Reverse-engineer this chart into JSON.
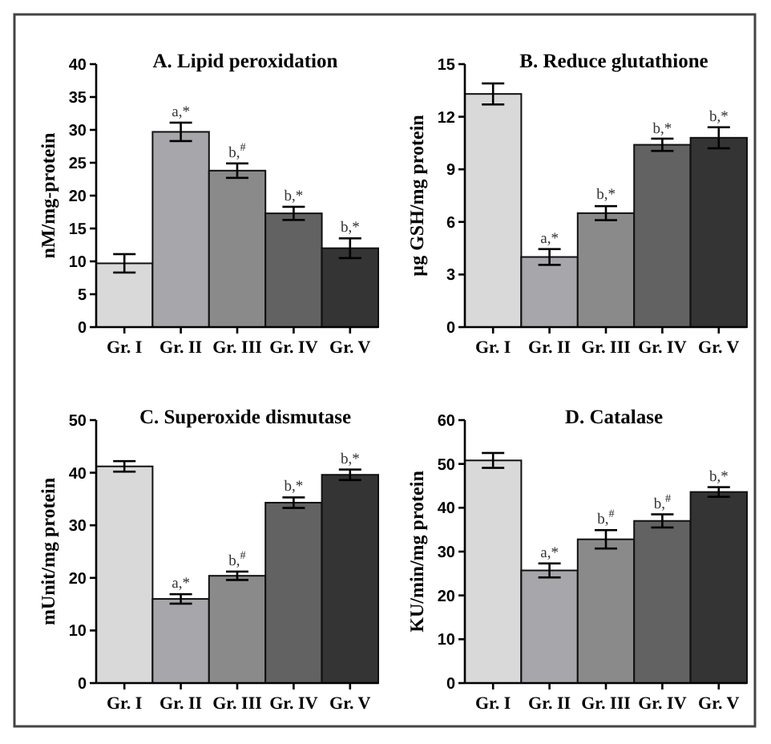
{
  "chart_data": [
    {
      "type": "bar",
      "title": "A. Lipid peroxidation",
      "ylabel": "nM/mg-protein",
      "categories": [
        "Gr. I",
        "Gr. II",
        "Gr. III",
        "Gr. IV",
        "Gr. V"
      ],
      "values": [
        9.7,
        29.7,
        23.8,
        17.3,
        12.0
      ],
      "errors": [
        1.4,
        1.4,
        1.1,
        1.0,
        1.5
      ],
      "colors": [
        "#d9d9d9",
        "#a7a7ab",
        "#8a8a8a",
        "#626262",
        "#343434"
      ],
      "ylim": [
        0,
        40
      ],
      "yticks": [
        0,
        5,
        10,
        15,
        20,
        25,
        30,
        35,
        40
      ],
      "grid": false,
      "annotations": [
        {
          "text": "a,*",
          "x": "Gr. II",
          "y": 31.1
        },
        {
          "text": "b,$^{#}$",
          "x": "Gr. III",
          "y": 24.9
        },
        {
          "text": "b,*",
          "x": "Gr. IV",
          "y": 18.3
        },
        {
          "text": "b,*",
          "x": "Gr. V",
          "y": 13.5
        }
      ]
    },
    {
      "type": "bar",
      "title": "B. Reduce glutathione",
      "ylabel": "µg GSH/mg protein",
      "categories": [
        "Gr. I",
        "Gr. II",
        "Gr. III",
        "Gr. IV",
        "Gr. V"
      ],
      "values": [
        13.3,
        4.0,
        6.5,
        10.4,
        10.8
      ],
      "errors": [
        0.6,
        0.45,
        0.4,
        0.35,
        0.6
      ],
      "colors": [
        "#d9d9d9",
        "#a7a7ab",
        "#8a8a8a",
        "#626262",
        "#343434"
      ],
      "ylim": [
        0,
        15
      ],
      "yticks": [
        0,
        3,
        6,
        9,
        12,
        15
      ],
      "grid": false,
      "annotations": [
        {
          "text": "a,*",
          "x": "Gr. II",
          "y": 4.45
        },
        {
          "text": "b,*",
          "x": "Gr. III",
          "y": 6.95
        },
        {
          "text": "b,*",
          "x": "Gr. IV",
          "y": 10.7
        },
        {
          "text": "b,*",
          "x": "Gr. V",
          "y": 11.4
        }
      ]
    },
    {
      "type": "bar",
      "title": "C. Superoxide dismutase",
      "ylabel": "mUnit/mg protein",
      "categories": [
        "Gr. I",
        "Gr. II",
        "Gr. III",
        "Gr. IV",
        "Gr. V"
      ],
      "values": [
        41.2,
        16.0,
        20.4,
        34.3,
        39.6
      ],
      "errors": [
        1.0,
        0.9,
        0.8,
        1.0,
        1.0
      ],
      "colors": [
        "#d9d9d9",
        "#a7a7ab",
        "#8a8a8a",
        "#626262",
        "#343434"
      ],
      "ylim": [
        0,
        50
      ],
      "yticks": [
        0,
        10,
        20,
        30,
        40,
        50
      ],
      "grid": false,
      "annotations": [
        {
          "text": "a,*",
          "x": "Gr. II",
          "y": 16.9
        },
        {
          "text": "b,$^{#}$",
          "x": "Gr. III",
          "y": 21.2
        },
        {
          "text": "b,*",
          "x": "Gr. IV",
          "y": 35.3
        },
        {
          "text": "b,*",
          "x": "Gr. V",
          "y": 40.6
        }
      ]
    },
    {
      "type": "bar",
      "title": "D. Catalase",
      "ylabel": "KU/min/mg protein",
      "categories": [
        "Gr. I",
        "Gr. II",
        "Gr. III",
        "Gr. IV",
        "Gr. V"
      ],
      "values": [
        50.8,
        25.7,
        32.8,
        37.0,
        43.6
      ],
      "errors": [
        1.7,
        1.6,
        2.1,
        1.5,
        1.1
      ],
      "colors": [
        "#d9d9d9",
        "#a7a7ab",
        "#8a8a8a",
        "#626262",
        "#343434"
      ],
      "ylim": [
        0,
        60
      ],
      "yticks": [
        0,
        10,
        20,
        30,
        40,
        50,
        60
      ],
      "grid": false,
      "annotations": [
        {
          "text": "a,*",
          "x": "Gr. II",
          "y": 27.3
        },
        {
          "text": "b,$^{#}$",
          "x": "Gr. III",
          "y": 34.9
        },
        {
          "text": "b,$^{#}$",
          "x": "Gr. IV",
          "y": 38.5
        },
        {
          "text": "b,*",
          "x": "Gr. V",
          "y": 44.7
        }
      ]
    }
  ]
}
